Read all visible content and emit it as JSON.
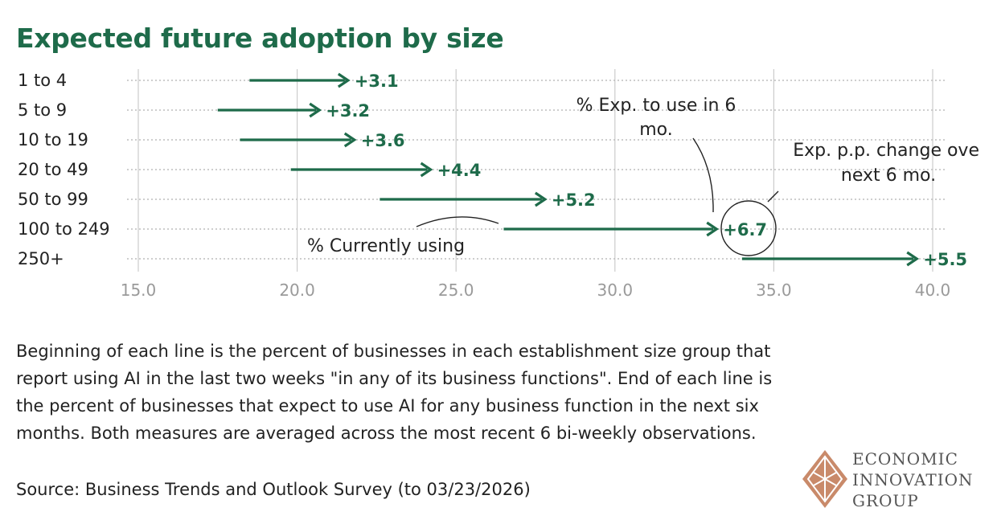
{
  "chart_data": {
    "type": "arrow-dot",
    "title": "Expected future adoption by size",
    "categories": [
      "1 to 4",
      "5 to 9",
      "10 to 19",
      "20 to 49",
      "50 to 99",
      "100 to 249",
      "250+"
    ],
    "series": [
      {
        "name": "% Currently using",
        "values": [
          18.5,
          17.5,
          18.2,
          19.8,
          22.6,
          26.5,
          34.0
        ]
      },
      {
        "name": "% Exp. to use in 6 mo.",
        "values": [
          21.6,
          20.7,
          21.8,
          24.2,
          27.8,
          33.2,
          39.5
        ]
      }
    ],
    "change_labels": [
      "+3.1",
      "+3.2",
      "+3.6",
      "+4.4",
      "+5.2",
      "+6.7",
      "+5.5"
    ],
    "xlim": [
      15.0,
      40.0
    ],
    "xticks": [
      "15.0",
      "20.0",
      "25.0",
      "30.0",
      "35.0",
      "40.0"
    ],
    "xtick_values": [
      15,
      20,
      25,
      30,
      35,
      40
    ],
    "grid": true,
    "annotations": {
      "end": [
        "% Exp. to use in 6",
        "mo."
      ],
      "start": "% Currently using",
      "change": [
        "Exp. p.p. change ove",
        "next 6 mo."
      ]
    },
    "highlight_row": 5,
    "colors": {
      "accent": "#1e6b4a",
      "grid": "#cccccc",
      "tick": "#9a9a9a"
    }
  },
  "caption": "Beginning of each line is the percent of businesses in each establishment size group that report using AI in the last two weeks \"in any of its business functions\". End of each line is the percent of businesses that expect to use AI for any business function in the next six months. Both measures are averaged across the most recent 6 bi-weekly observations.",
  "source": "Source: Business Trends and Outlook Survey (to 03/23/2026)",
  "logo": {
    "lines": [
      "ECONOMIC",
      "INNOVATION",
      "GROUP"
    ]
  }
}
